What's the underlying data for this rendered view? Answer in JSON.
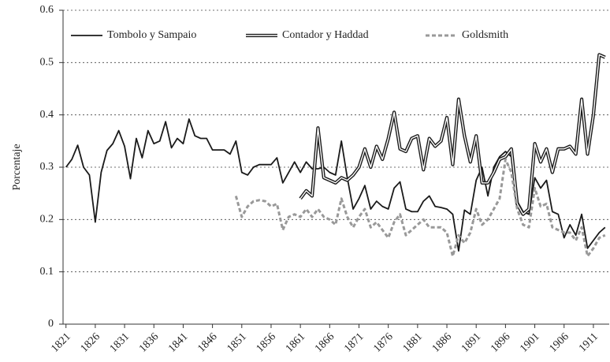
{
  "chart_data": {
    "type": "line",
    "ylabel": "Porcentaje",
    "x": [
      1821,
      1822,
      1823,
      1824,
      1825,
      1826,
      1827,
      1828,
      1829,
      1830,
      1831,
      1832,
      1833,
      1834,
      1835,
      1836,
      1837,
      1838,
      1839,
      1840,
      1841,
      1842,
      1843,
      1844,
      1845,
      1846,
      1847,
      1848,
      1849,
      1850,
      1851,
      1852,
      1853,
      1854,
      1855,
      1856,
      1857,
      1858,
      1859,
      1860,
      1861,
      1862,
      1863,
      1864,
      1865,
      1866,
      1867,
      1868,
      1869,
      1870,
      1871,
      1872,
      1873,
      1874,
      1875,
      1876,
      1877,
      1878,
      1879,
      1880,
      1881,
      1882,
      1883,
      1884,
      1885,
      1886,
      1887,
      1888,
      1889,
      1890,
      1891,
      1892,
      1893,
      1894,
      1895,
      1896,
      1897,
      1898,
      1899,
      1900,
      1901,
      1902,
      1903,
      1904,
      1905,
      1906,
      1907,
      1908,
      1909,
      1910,
      1911,
      1912,
      1913
    ],
    "series": [
      {
        "name": "Tombolo y Sampaio",
        "color": "#1a1a1a",
        "style": "solid",
        "values": [
          0.3,
          0.315,
          0.342,
          0.3,
          0.285,
          0.195,
          0.29,
          0.332,
          0.345,
          0.37,
          0.34,
          0.278,
          0.355,
          0.318,
          0.37,
          0.345,
          0.35,
          0.387,
          0.337,
          0.355,
          0.345,
          0.392,
          0.36,
          0.355,
          0.355,
          0.333,
          0.333,
          0.333,
          0.325,
          0.35,
          0.29,
          0.285,
          0.3,
          0.305,
          0.305,
          0.305,
          0.318,
          0.27,
          0.29,
          0.31,
          0.29,
          0.31,
          0.297,
          0.297,
          0.3,
          0.29,
          0.285,
          0.35,
          0.28,
          0.22,
          0.24,
          0.265,
          0.22,
          0.235,
          0.225,
          0.22,
          0.26,
          0.272,
          0.22,
          0.215,
          0.215,
          0.235,
          0.245,
          0.225,
          0.223,
          0.22,
          0.21,
          0.14,
          0.218,
          0.21,
          0.275,
          0.3,
          0.245,
          0.3,
          0.32,
          0.33,
          0.32,
          0.235,
          0.215,
          0.21,
          0.28,
          0.26,
          0.275,
          0.215,
          0.21,
          0.165,
          0.19,
          0.17,
          0.21,
          0.145,
          0.16,
          0.175,
          0.185
        ]
      },
      {
        "name": "Contador y Haddad",
        "color": "#1a1a1a",
        "style": "double",
        "values": [
          null,
          null,
          null,
          null,
          null,
          null,
          null,
          null,
          null,
          null,
          null,
          null,
          null,
          null,
          null,
          null,
          null,
          null,
          null,
          null,
          null,
          null,
          null,
          null,
          null,
          null,
          null,
          null,
          null,
          null,
          null,
          null,
          null,
          null,
          null,
          null,
          null,
          null,
          null,
          null,
          0.24,
          0.255,
          0.245,
          0.375,
          0.28,
          0.275,
          0.27,
          0.28,
          0.275,
          0.285,
          0.3,
          0.335,
          0.3,
          0.34,
          0.315,
          0.355,
          0.405,
          0.335,
          0.33,
          0.355,
          0.36,
          0.295,
          0.355,
          0.34,
          0.35,
          0.395,
          0.305,
          0.43,
          0.36,
          0.31,
          0.36,
          0.27,
          0.27,
          0.29,
          0.315,
          0.32,
          0.335,
          0.23,
          0.21,
          0.22,
          0.345,
          0.31,
          0.335,
          0.29,
          0.335,
          0.335,
          0.34,
          0.325,
          0.43,
          0.325,
          0.4,
          0.515,
          0.51
        ]
      },
      {
        "name": "Goldsmith",
        "color": "#999999",
        "style": "dashed",
        "values": [
          null,
          null,
          null,
          null,
          null,
          null,
          null,
          null,
          null,
          null,
          null,
          null,
          null,
          null,
          null,
          null,
          null,
          null,
          null,
          null,
          null,
          null,
          null,
          null,
          null,
          null,
          null,
          null,
          null,
          0.245,
          0.205,
          0.225,
          0.235,
          0.237,
          0.235,
          0.225,
          0.23,
          0.18,
          0.205,
          0.21,
          0.205,
          0.22,
          0.205,
          0.22,
          0.205,
          0.2,
          0.19,
          0.24,
          0.205,
          0.185,
          0.205,
          0.22,
          0.185,
          0.195,
          0.18,
          0.165,
          0.195,
          0.21,
          0.17,
          0.18,
          0.19,
          0.2,
          0.185,
          0.185,
          0.185,
          0.175,
          0.13,
          0.17,
          0.155,
          0.175,
          0.22,
          0.19,
          0.2,
          0.22,
          0.24,
          0.315,
          0.29,
          0.22,
          0.19,
          0.185,
          0.26,
          0.225,
          0.23,
          0.185,
          0.18,
          0.175,
          0.175,
          0.16,
          0.185,
          0.13,
          0.145,
          0.165,
          0.17
        ]
      }
    ],
    "xlim": [
      1820.5,
      1913.7
    ],
    "xticks": [
      1821,
      1826,
      1831,
      1836,
      1841,
      1846,
      1851,
      1856,
      1861,
      1866,
      1871,
      1876,
      1881,
      1886,
      1891,
      1896,
      1901,
      1906,
      1911
    ],
    "ylim": [
      0,
      0.6
    ],
    "yticks": [
      0,
      0.1,
      0.2,
      0.3,
      0.4,
      0.5,
      0.6
    ],
    "grid": true,
    "legend": "top"
  }
}
